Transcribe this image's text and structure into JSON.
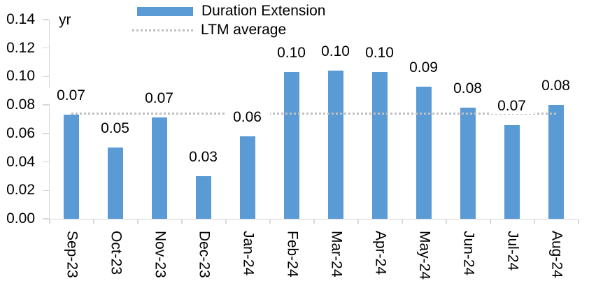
{
  "chart_data": {
    "type": "bar",
    "unit_label": "yr",
    "categories": [
      "Sep-23",
      "Oct-23",
      "Nov-23",
      "Dec-23",
      "Jan-24",
      "Feb-24",
      "Mar-24",
      "Apr-24",
      "May-24",
      "Jun-24",
      "Jul-24",
      "Aug-24"
    ],
    "series": [
      {
        "name": "Duration Extension",
        "values": [
          0.07,
          0.05,
          0.07,
          0.03,
          0.06,
          0.1,
          0.1,
          0.1,
          0.09,
          0.08,
          0.07,
          0.08
        ],
        "data_labels": [
          "0.07",
          "0.05",
          "0.07",
          "0.03",
          "0.06",
          "0.10",
          "0.10",
          "0.10",
          "0.09",
          "0.08",
          "0.07",
          "0.08"
        ],
        "values_precise": [
          0.073,
          0.05,
          0.071,
          0.03,
          0.058,
          0.103,
          0.104,
          0.103,
          0.093,
          0.078,
          0.066,
          0.08
        ]
      }
    ],
    "reference_line": {
      "name": "LTM average",
      "value": 0.074,
      "style": "dotted"
    },
    "legend": [
      {
        "label": "Duration Extension",
        "swatch": "bar"
      },
      {
        "label": "LTM average",
        "swatch": "dotted-line"
      }
    ],
    "legend_position": "top",
    "ylim": [
      0,
      0.14
    ],
    "ytick_step": 0.02,
    "ytick_labels": [
      "0.00",
      "0.02",
      "0.04",
      "0.06",
      "0.08",
      "0.10",
      "0.12",
      "0.14"
    ],
    "grid": false,
    "colors": {
      "bar": "#5B9BD5",
      "reference_line": "#BFBFBF",
      "axis": "#D9D9D9",
      "text": "#000000",
      "background": "#FFFFFF"
    }
  }
}
